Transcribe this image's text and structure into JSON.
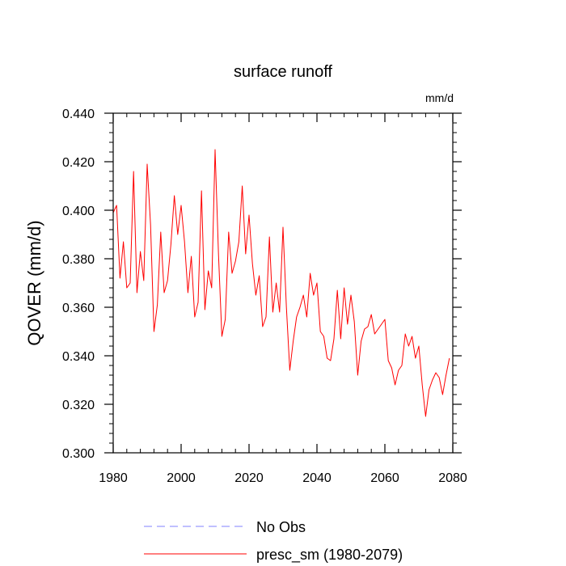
{
  "chart_data": {
    "type": "line",
    "title": "surface runoff",
    "units_label": "mm/d",
    "xlabel": "",
    "ylabel": "QOVER  (mm/d)",
    "xlim": [
      1980,
      2080
    ],
    "ylim": [
      0.3,
      0.44
    ],
    "x_ticks": [
      1980,
      2000,
      2020,
      2040,
      2060,
      2080
    ],
    "x_tick_labels": [
      "1980",
      "2000",
      "2020",
      "2040",
      "2060",
      "2080"
    ],
    "y_ticks": [
      0.3,
      0.32,
      0.34,
      0.36,
      0.38,
      0.4,
      0.42,
      0.44
    ],
    "y_tick_labels": [
      "0.300",
      "0.320",
      "0.340",
      "0.360",
      "0.380",
      "0.400",
      "0.420",
      "0.440"
    ],
    "grid": false,
    "legend_position": "bottom",
    "series": [
      {
        "name": "No Obs",
        "color": "#8080ff",
        "dash": "dashed",
        "x": [],
        "values": []
      },
      {
        "name": "presc_sm (1980-2079)",
        "color": "#ff0000",
        "dash": "solid",
        "x": [
          1980,
          1981,
          1982,
          1983,
          1984,
          1985,
          1986,
          1987,
          1988,
          1989,
          1990,
          1991,
          1992,
          1993,
          1994,
          1995,
          1996,
          1997,
          1998,
          1999,
          2000,
          2001,
          2002,
          2003,
          2004,
          2005,
          2006,
          2007,
          2008,
          2009,
          2010,
          2011,
          2012,
          2013,
          2014,
          2015,
          2016,
          2017,
          2018,
          2019,
          2020,
          2021,
          2022,
          2023,
          2024,
          2025,
          2026,
          2027,
          2028,
          2029,
          2030,
          2031,
          2032,
          2033,
          2034,
          2035,
          2036,
          2037,
          2038,
          2039,
          2040,
          2041,
          2042,
          2043,
          2044,
          2045,
          2046,
          2047,
          2048,
          2049,
          2050,
          2051,
          2052,
          2053,
          2054,
          2055,
          2056,
          2057,
          2058,
          2059,
          2060,
          2061,
          2062,
          2063,
          2064,
          2065,
          2066,
          2067,
          2068,
          2069,
          2070,
          2071,
          2072,
          2073,
          2074,
          2075,
          2076,
          2077,
          2078,
          2079
        ],
        "values": [
          0.399,
          0.402,
          0.372,
          0.387,
          0.368,
          0.37,
          0.416,
          0.366,
          0.383,
          0.371,
          0.419,
          0.394,
          0.35,
          0.361,
          0.391,
          0.366,
          0.371,
          0.386,
          0.406,
          0.39,
          0.402,
          0.387,
          0.366,
          0.381,
          0.356,
          0.362,
          0.408,
          0.359,
          0.375,
          0.368,
          0.425,
          0.382,
          0.348,
          0.355,
          0.391,
          0.374,
          0.379,
          0.387,
          0.41,
          0.382,
          0.398,
          0.378,
          0.365,
          0.373,
          0.352,
          0.356,
          0.389,
          0.358,
          0.37,
          0.358,
          0.393,
          0.36,
          0.334,
          0.346,
          0.356,
          0.36,
          0.365,
          0.356,
          0.374,
          0.365,
          0.37,
          0.35,
          0.348,
          0.339,
          0.338,
          0.347,
          0.367,
          0.347,
          0.368,
          0.353,
          0.365,
          0.354,
          0.332,
          0.346,
          0.351,
          0.352,
          0.357,
          0.349,
          0.351,
          0.353,
          0.355,
          0.338,
          0.335,
          0.328,
          0.334,
          0.336,
          0.349,
          0.344,
          0.348,
          0.339,
          0.344,
          0.328,
          0.315,
          0.326,
          0.33,
          0.333,
          0.331,
          0.324,
          0.332,
          0.339
        ]
      }
    ]
  }
}
